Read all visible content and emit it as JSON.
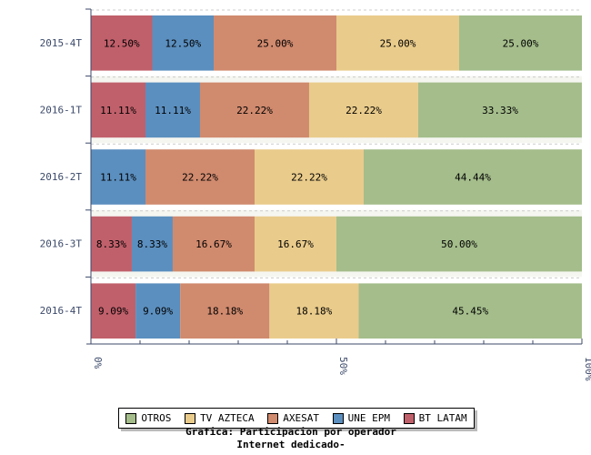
{
  "chart_data": {
    "type": "bar",
    "orientation": "horizontal",
    "stacked": "percent",
    "title": "Grafica: Participacion por operador",
    "subtitle": "Internet dedicado-",
    "categories": [
      "2015-4T",
      "2016-1T",
      "2016-2T",
      "2016-3T",
      "2016-4T"
    ],
    "series": [
      {
        "name": "BT LATAM",
        "color": "#c0606b",
        "values": [
          12.5,
          11.11,
          0,
          8.33,
          9.09
        ]
      },
      {
        "name": "UNE EPM",
        "color": "#5b8fbf",
        "values": [
          12.5,
          11.11,
          11.11,
          8.33,
          9.09
        ]
      },
      {
        "name": "AXESAT",
        "color": "#d08a6e",
        "values": [
          25.0,
          22.22,
          22.22,
          16.67,
          18.18
        ]
      },
      {
        "name": "TV AZTECA",
        "color": "#e9cb8b",
        "values": [
          25.0,
          22.22,
          22.22,
          16.67,
          18.18
        ]
      },
      {
        "name": "OTROS",
        "color": "#a4bd8b",
        "values": [
          25.0,
          33.33,
          44.44,
          50.0,
          45.45
        ]
      }
    ],
    "legend_order": [
      "OTROS",
      "TV AZTECA",
      "AXESAT",
      "UNE EPM",
      "BT LATAM"
    ],
    "xlim": [
      0,
      100
    ],
    "xticks": [
      "0%",
      "50%",
      "100%"
    ],
    "legend_position": "bottom"
  }
}
